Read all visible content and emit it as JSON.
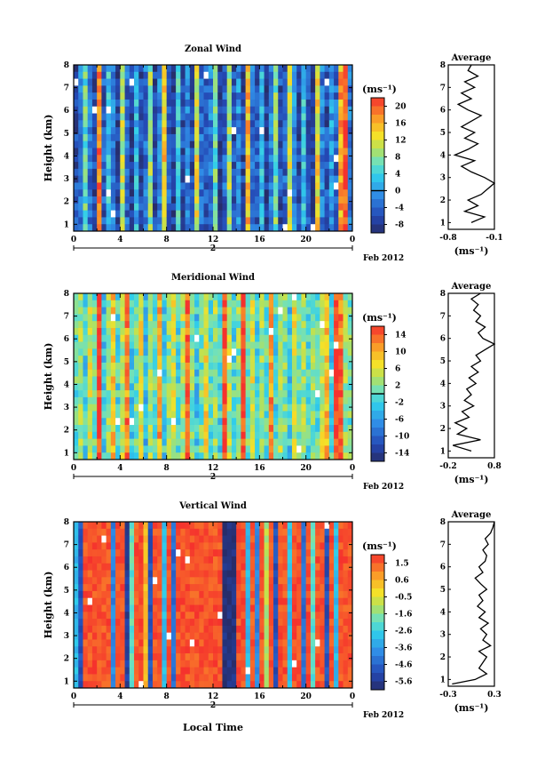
{
  "figure": {
    "xlabel": "Local Time",
    "date_label": "Feb 2012",
    "day_label": "2",
    "profile_title": "Average",
    "profile_unit": "(ms⁻¹)",
    "colorbar_unit": "(ms⁻¹)",
    "ylabel": "Height (km)"
  },
  "panels": [
    {
      "title": "Zonal Wind"
    },
    {
      "title": "Meridional Wind"
    },
    {
      "title": "Vertical Wind"
    }
  ],
  "chart_data": [
    {
      "type": "heatmap",
      "title": "Zonal Wind",
      "xlabel": "",
      "ylabel": "Height (km)",
      "x_ticks": [
        "0",
        "4",
        "8",
        "12",
        "16",
        "20",
        "0"
      ],
      "xlim": [
        0,
        24
      ],
      "y_ticks": [
        "1",
        "2",
        "3",
        "4",
        "5",
        "6",
        "7",
        "8"
      ],
      "ylim": [
        0.7,
        8
      ],
      "date_label": "Feb 2012",
      "colorbar": {
        "unit": "(ms⁻¹)",
        "ticks": [
          "20",
          "16",
          "12",
          "8",
          "4",
          "0",
          "-4",
          "-8"
        ],
        "range": [
          -10,
          22
        ],
        "contour_at": 0
      },
      "time_profile_u": [
        -6,
        -2,
        6,
        -3,
        -7,
        18,
        -5,
        3,
        -1,
        -7,
        10,
        -4,
        -8,
        2,
        -6,
        -3,
        8,
        -7,
        -2,
        14,
        -4,
        -8,
        4,
        -6,
        -1,
        -7,
        12,
        -3,
        -5,
        -2,
        6,
        -8,
        -4,
        9,
        -6,
        -1,
        -7,
        15,
        -3,
        -5,
        2,
        -8,
        -2,
        7,
        -6,
        -4,
        11,
        -1,
        -7,
        3,
        -5,
        -8,
        13,
        -2,
        -6,
        0,
        -4,
        16,
        20,
        -3
      ],
      "profile": {
        "title": "Average",
        "xlim": [
          -0.8,
          -0.1
        ],
        "x_ticks": [
          "-0.8",
          "-0.1"
        ],
        "xlabel": "(ms⁻¹)",
        "y_ticks": [
          "1",
          "2",
          "3",
          "4",
          "5",
          "6",
          "7",
          "8"
        ],
        "heights": [
          1.0,
          1.25,
          1.5,
          1.75,
          2.0,
          2.25,
          2.5,
          2.75,
          3.0,
          3.25,
          3.5,
          3.75,
          4.0,
          4.25,
          4.5,
          4.75,
          5.0,
          5.25,
          5.5,
          5.75,
          6.0,
          6.25,
          6.5,
          6.75,
          7.0,
          7.25,
          7.5,
          7.75,
          8.0
        ],
        "values": [
          -0.45,
          -0.25,
          -0.55,
          -0.35,
          -0.5,
          -0.3,
          -0.2,
          -0.1,
          -0.25,
          -0.45,
          -0.6,
          -0.4,
          -0.7,
          -0.5,
          -0.35,
          -0.55,
          -0.4,
          -0.6,
          -0.45,
          -0.3,
          -0.5,
          -0.65,
          -0.45,
          -0.6,
          -0.4,
          -0.55,
          -0.35,
          -0.5,
          -0.45
        ]
      }
    },
    {
      "type": "heatmap",
      "title": "Meridional Wind",
      "xlabel": "",
      "ylabel": "Height (km)",
      "x_ticks": [
        "0",
        "4",
        "8",
        "12",
        "16",
        "20",
        "0"
      ],
      "xlim": [
        0,
        24
      ],
      "y_ticks": [
        "1",
        "2",
        "3",
        "4",
        "5",
        "6",
        "7",
        "8"
      ],
      "ylim": [
        0.7,
        8
      ],
      "date_label": "Feb 2012",
      "colorbar": {
        "unit": "(ms⁻¹)",
        "ticks": [
          "14",
          "10",
          "6",
          "2",
          "-2",
          "-6",
          "-10",
          "-14"
        ],
        "range": [
          -16,
          16
        ],
        "contour_at": 0
      },
      "time_profile_v": [
        0,
        3,
        -2,
        5,
        1,
        16,
        -3,
        2,
        8,
        -1,
        4,
        12,
        -2,
        1,
        6,
        -4,
        3,
        0,
        10,
        -2,
        2,
        5,
        -1,
        4,
        14,
        2,
        -3,
        1,
        7,
        0,
        3,
        -2,
        15,
        4,
        -1,
        2,
        16,
        1,
        5,
        -2,
        3,
        0,
        11,
        -1,
        4,
        2,
        -3,
        6,
        1,
        3,
        -1,
        2,
        0,
        5,
        9,
        -2,
        16,
        13,
        3,
        1
      ],
      "profile": {
        "title": "Average",
        "xlim": [
          -0.2,
          0.8
        ],
        "x_ticks": [
          "-0.2",
          "0.8"
        ],
        "xlabel": "(ms⁻¹)",
        "y_ticks": [
          "1",
          "2",
          "3",
          "4",
          "5",
          "6",
          "7",
          "8"
        ],
        "heights": [
          1.0,
          1.25,
          1.5,
          1.75,
          2.0,
          2.25,
          2.5,
          2.75,
          3.0,
          3.25,
          3.5,
          3.75,
          4.0,
          4.25,
          4.5,
          4.75,
          5.0,
          5.25,
          5.5,
          5.75,
          6.0,
          6.25,
          6.5,
          6.75,
          7.0,
          7.25,
          7.5,
          7.75,
          8.0
        ],
        "values": [
          0.3,
          -0.1,
          0.5,
          0.0,
          0.2,
          -0.05,
          0.25,
          0.1,
          0.35,
          0.15,
          0.3,
          0.2,
          0.4,
          0.25,
          0.45,
          0.3,
          0.5,
          0.4,
          0.6,
          0.8,
          0.55,
          0.45,
          0.6,
          0.4,
          0.5,
          0.35,
          0.45,
          0.3,
          0.5
        ]
      }
    },
    {
      "type": "heatmap",
      "title": "Vertical Wind",
      "xlabel": "Local Time",
      "ylabel": "Height (km)",
      "x_ticks": [
        "0",
        "4",
        "8",
        "12",
        "16",
        "20",
        "0"
      ],
      "xlim": [
        0,
        24
      ],
      "y_ticks": [
        "1",
        "2",
        "3",
        "4",
        "5",
        "6",
        "7",
        "8"
      ],
      "ylim": [
        0.7,
        8
      ],
      "date_label": "Feb 2012",
      "colorbar": {
        "unit": "(ms⁻¹)",
        "ticks": [
          "1.5",
          "0.6",
          "-0.5",
          "-1.6",
          "-2.6",
          "-3.6",
          "-4.6",
          "-5.6"
        ],
        "range": [
          -6.2,
          2.2
        ]
      },
      "time_profile_w": [
        -3,
        -5,
        1.8,
        1.8,
        1.8,
        1.8,
        1.8,
        1.8,
        -4,
        1.8,
        1.8,
        -5.5,
        -2,
        1.8,
        1.8,
        0.5,
        -5,
        1.8,
        1.8,
        -3,
        1.8,
        -4.5,
        1.8,
        1.8,
        1.8,
        1.8,
        1.8,
        1.8,
        1.8,
        1.8,
        1.8,
        1.8,
        -6,
        -6,
        -6,
        1.8,
        1.8,
        -3,
        1.8,
        -4,
        1.8,
        -1,
        1.8,
        -5,
        1.8,
        1.8,
        -3,
        1.8,
        1.8,
        -4.5,
        1.8,
        -2,
        1.8,
        1.8,
        -5,
        1.8,
        -3,
        1.8,
        1.8,
        1.8
      ],
      "profile": {
        "title": "Average",
        "xlim": [
          -0.3,
          0.3
        ],
        "x_ticks": [
          "-0.3",
          "0.3"
        ],
        "xlabel": "(ms⁻¹)",
        "y_ticks": [
          "1",
          "2",
          "3",
          "4",
          "5",
          "6",
          "7",
          "8"
        ],
        "heights": [
          0.8,
          1.0,
          1.25,
          1.5,
          1.75,
          2.0,
          2.25,
          2.5,
          2.75,
          3.0,
          3.25,
          3.5,
          3.75,
          4.0,
          4.25,
          4.5,
          4.75,
          5.0,
          5.25,
          5.5,
          5.75,
          6.0,
          6.25,
          6.5,
          6.75,
          7.0,
          7.25,
          7.5,
          7.75,
          8.0
        ],
        "values": [
          -0.25,
          0.05,
          0.2,
          0.1,
          0.15,
          0.2,
          0.1,
          0.25,
          0.15,
          0.2,
          0.12,
          0.22,
          0.1,
          0.18,
          0.08,
          0.15,
          0.1,
          0.2,
          0.12,
          0.05,
          0.15,
          0.1,
          0.18,
          0.2,
          0.15,
          0.22,
          0.18,
          0.25,
          0.28,
          0.3
        ]
      }
    }
  ]
}
